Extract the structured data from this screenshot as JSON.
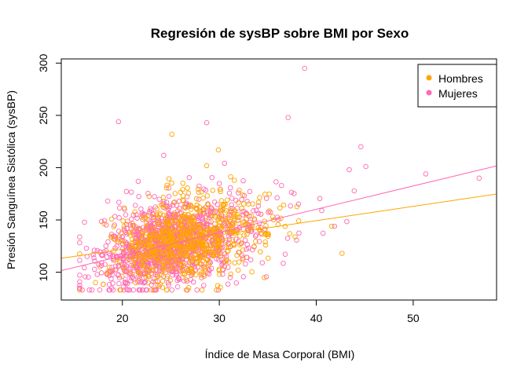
{
  "chart_data": {
    "type": "scatter",
    "title": "Regresión de sysBP sobre BMI por Sexo",
    "xlabel": "Índice de Masa Corporal (BMI)",
    "ylabel": "Presión Sanguínea Sistólica (sysBP)",
    "xlim": [
      13.7,
      58.6
    ],
    "ylim": [
      73.4,
      304.0
    ],
    "x_ticks": [
      20,
      30,
      40,
      50
    ],
    "y_ticks": [
      100,
      150,
      200,
      250,
      300
    ],
    "grid": false,
    "legend_position": "top-right",
    "series": [
      {
        "name": "Hombres",
        "color": "#FFA500",
        "marker": "open-circle",
        "regression": {
          "intercept": 94.5,
          "slope": 1.37
        }
      },
      {
        "name": "Mujeres",
        "color": "#FF69B4",
        "marker": "open-circle",
        "regression": {
          "intercept": 71.0,
          "slope": 2.23
        }
      }
    ]
  }
}
